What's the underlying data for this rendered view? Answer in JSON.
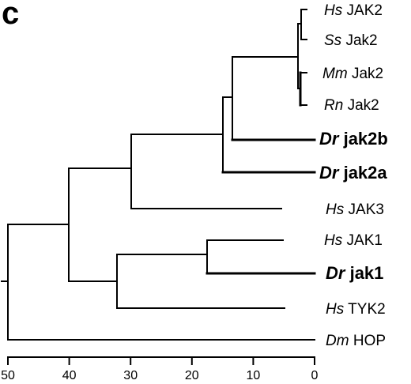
{
  "panel_label": "c",
  "leaves": [
    {
      "genus": "Hs",
      "name": "JAK2",
      "bold": false
    },
    {
      "genus": "Ss",
      "name": "Jak2",
      "bold": false
    },
    {
      "genus": "Mm",
      "name": "Jak2",
      "bold": false
    },
    {
      "genus": "Rn",
      "name": "Jak2",
      "bold": false
    },
    {
      "genus": "Dr",
      "name": "jak2b",
      "bold": true
    },
    {
      "genus": "Dr",
      "name": "jak2a",
      "bold": true
    },
    {
      "genus": "Hs",
      "name": "JAK3",
      "bold": false
    },
    {
      "genus": "Hs",
      "name": "JAK1",
      "bold": false
    },
    {
      "genus": "Dr",
      "name": "jak1",
      "bold": true
    },
    {
      "genus": "Hs",
      "name": "TYK2",
      "bold": false
    },
    {
      "genus": "Dm",
      "name": "HOP",
      "bold": false
    }
  ],
  "axis": {
    "ticks": [
      "50",
      "40",
      "30",
      "20",
      "10",
      "0"
    ]
  }
}
